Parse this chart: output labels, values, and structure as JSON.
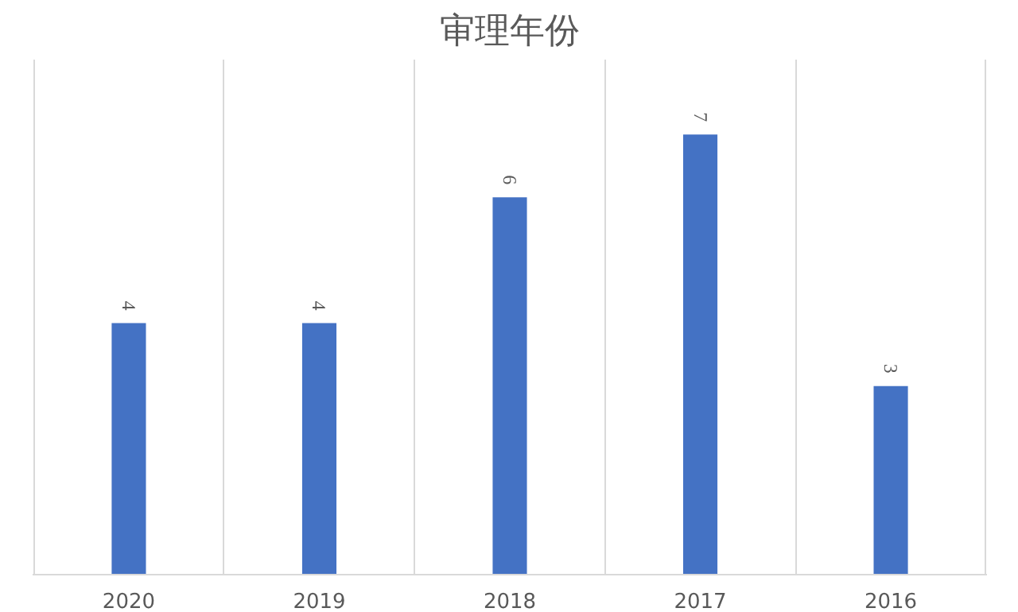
{
  "chart_data": {
    "type": "bar",
    "title": "审理年份",
    "categories": [
      "2020",
      "2019",
      "2018",
      "2017",
      "2016"
    ],
    "values": [
      4,
      4,
      6,
      7,
      3
    ],
    "color": "#4472c4",
    "data_labels": true,
    "grid": "x"
  }
}
